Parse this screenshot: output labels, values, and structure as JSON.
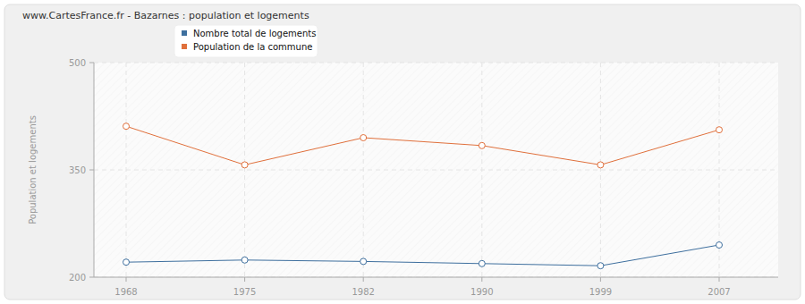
{
  "chart_data": {
    "type": "line",
    "title": "www.CartesFrance.fr - Bazarnes : population et logements",
    "y_label": "Population et logements",
    "categories": [
      "1968",
      "1975",
      "1982",
      "1990",
      "1999",
      "2007"
    ],
    "series": [
      {
        "name": "Nombre total de logements",
        "color": "#3e6f9e",
        "marker": "circle",
        "values": [
          221,
          224,
          222,
          219,
          216,
          245
        ]
      },
      {
        "name": "Population de la commune",
        "color": "#e0703c",
        "marker": "circle",
        "values": [
          411,
          357,
          395,
          384,
          357,
          406
        ]
      }
    ],
    "ylim": [
      200,
      500
    ],
    "yticks": [
      200,
      350,
      500
    ],
    "grid": true,
    "legend": "top-left"
  }
}
